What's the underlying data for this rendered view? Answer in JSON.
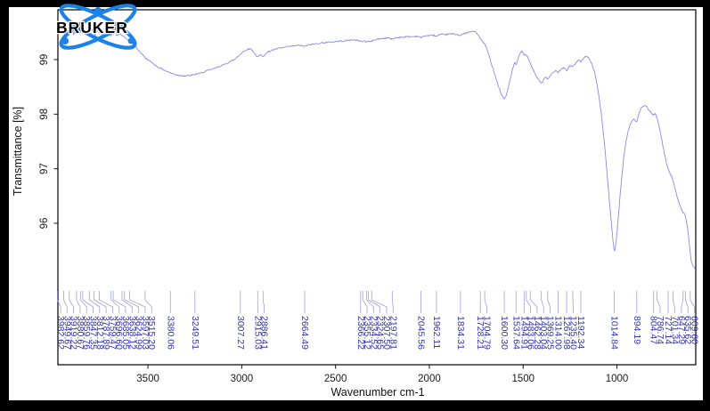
{
  "branding": {
    "logo_text": "BRUKER",
    "logo_color": "#1b82e8",
    "logo_text_color": "#000000"
  },
  "chart_data": {
    "type": "line",
    "title": "",
    "xlabel": "Wavenumber cm-1",
    "ylabel": "Transmittance [%]",
    "x_ticks": [
      3500,
      3000,
      2500,
      2000,
      1500,
      1000
    ],
    "y_ticks": [
      99,
      98,
      97,
      96
    ],
    "x_axis_range_cm1": [
      3980,
      580
    ],
    "ylim_visible": [
      93.4,
      99.9
    ],
    "grid": "off",
    "legend": "none",
    "line_color": "#8a8ae8",
    "peak_label_color": "#3333bb",
    "leader_line_color": "#9f9fe2",
    "frame_color": "#000000",
    "background_color": "#ffffff",
    "border_color": "#000000",
    "peak_labels": [
      "3982.62",
      "3949.67",
      "3919.22",
      "3880.67",
      "3859.76",
      "3847.35",
      "3812.18",
      "3787.89",
      "3759.47",
      "3696.60",
      "3685.05",
      "3638.12",
      "3624.99",
      "3597.03",
      "3515.20",
      "3380.06",
      "3249.51",
      "3007.27",
      "2915.03",
      "2886.41",
      "2664.49",
      "2366.22",
      "2355.12",
      "2334.52",
      "2324.65",
      "2307.50",
      "2197.81",
      "2045.56",
      "1962.11",
      "1834.31",
      "1728.21",
      "1704.79",
      "1600.30",
      "1537.64",
      "1494.91",
      "1483.06",
      "1462.28",
      "1403.04",
      "1369.25",
      "1314.00",
      "1267.98",
      "1235.40",
      "1192.34",
      "1014.84",
      "894.19",
      "804.47",
      "786.74",
      "727.14",
      "701.34",
      "647.29",
      "635.62",
      "609.60"
    ],
    "curve_anchors": [
      [
        3980,
        99.52
      ],
      [
        3955,
        99.62
      ],
      [
        3940,
        99.5
      ],
      [
        3920,
        99.56
      ],
      [
        3900,
        99.48
      ],
      [
        3880,
        99.55
      ],
      [
        3860,
        99.5
      ],
      [
        3840,
        99.56
      ],
      [
        3820,
        99.5
      ],
      [
        3800,
        99.54
      ],
      [
        3780,
        99.48
      ],
      [
        3760,
        99.53
      ],
      [
        3740,
        99.46
      ],
      [
        3720,
        99.5
      ],
      [
        3700,
        99.45
      ],
      [
        3685,
        99.5
      ],
      [
        3665,
        99.44
      ],
      [
        3650,
        99.48
      ],
      [
        3635,
        99.43
      ],
      [
        3620,
        99.4
      ],
      [
        3600,
        99.35
      ],
      [
        3570,
        99.25
      ],
      [
        3540,
        99.13
      ],
      [
        3510,
        99.02
      ],
      [
        3480,
        98.95
      ],
      [
        3450,
        98.87
      ],
      [
        3420,
        98.82
      ],
      [
        3390,
        98.77
      ],
      [
        3360,
        98.73
      ],
      [
        3330,
        98.71
      ],
      [
        3300,
        98.7
      ],
      [
        3270,
        98.71
      ],
      [
        3249,
        98.73
      ],
      [
        3220,
        98.75
      ],
      [
        3190,
        98.79
      ],
      [
        3160,
        98.82
      ],
      [
        3130,
        98.86
      ],
      [
        3100,
        98.9
      ],
      [
        3070,
        98.95
      ],
      [
        3040,
        99.0
      ],
      [
        3020,
        99.06
      ],
      [
        3007,
        99.1
      ],
      [
        2995,
        99.14
      ],
      [
        2980,
        99.17
      ],
      [
        2965,
        99.19
      ],
      [
        2950,
        99.2
      ],
      [
        2935,
        99.13
      ],
      [
        2915,
        99.04
      ],
      [
        2903,
        99.09
      ],
      [
        2886,
        99.06
      ],
      [
        2872,
        99.11
      ],
      [
        2860,
        99.14
      ],
      [
        2840,
        99.17
      ],
      [
        2810,
        99.2
      ],
      [
        2780,
        99.22
      ],
      [
        2750,
        99.24
      ],
      [
        2720,
        99.25
      ],
      [
        2690,
        99.26
      ],
      [
        2664,
        99.24
      ],
      [
        2645,
        99.27
      ],
      [
        2620,
        99.28
      ],
      [
        2590,
        99.3
      ],
      [
        2560,
        99.31
      ],
      [
        2530,
        99.32
      ],
      [
        2500,
        99.33
      ],
      [
        2470,
        99.34
      ],
      [
        2440,
        99.35
      ],
      [
        2410,
        99.36
      ],
      [
        2390,
        99.36
      ],
      [
        2370,
        99.33
      ],
      [
        2362,
        99.35
      ],
      [
        2355,
        99.32
      ],
      [
        2348,
        99.35
      ],
      [
        2334,
        99.32
      ],
      [
        2324,
        99.34
      ],
      [
        2315,
        99.32
      ],
      [
        2307,
        99.34
      ],
      [
        2295,
        99.36
      ],
      [
        2270,
        99.38
      ],
      [
        2240,
        99.39
      ],
      [
        2220,
        99.4
      ],
      [
        2197,
        99.37
      ],
      [
        2180,
        99.4
      ],
      [
        2150,
        99.41
      ],
      [
        2120,
        99.42
      ],
      [
        2090,
        99.42
      ],
      [
        2060,
        99.43
      ],
      [
        2045,
        99.4
      ],
      [
        2030,
        99.43
      ],
      [
        2010,
        99.44
      ],
      [
        1990,
        99.44
      ],
      [
        1975,
        99.45
      ],
      [
        1962,
        99.42
      ],
      [
        1950,
        99.45
      ],
      [
        1930,
        99.46
      ],
      [
        1910,
        99.46
      ],
      [
        1890,
        99.47
      ],
      [
        1870,
        99.47
      ],
      [
        1850,
        99.46
      ],
      [
        1834,
        99.44
      ],
      [
        1820,
        99.47
      ],
      [
        1800,
        99.49
      ],
      [
        1780,
        99.51
      ],
      [
        1765,
        99.52
      ],
      [
        1750,
        99.5
      ],
      [
        1740,
        99.45
      ],
      [
        1728,
        99.38
      ],
      [
        1716,
        99.33
      ],
      [
        1704,
        99.28
      ],
      [
        1692,
        99.18
      ],
      [
        1680,
        99.05
      ],
      [
        1665,
        98.88
      ],
      [
        1650,
        98.72
      ],
      [
        1635,
        98.55
      ],
      [
        1620,
        98.4
      ],
      [
        1610,
        98.32
      ],
      [
        1600,
        98.28
      ],
      [
        1592,
        98.32
      ],
      [
        1582,
        98.45
      ],
      [
        1572,
        98.6
      ],
      [
        1562,
        98.75
      ],
      [
        1552,
        98.88
      ],
      [
        1545,
        98.94
      ],
      [
        1537,
        98.9
      ],
      [
        1530,
        98.98
      ],
      [
        1522,
        99.06
      ],
      [
        1515,
        99.12
      ],
      [
        1508,
        99.15
      ],
      [
        1500,
        99.12
      ],
      [
        1494,
        99.08
      ],
      [
        1488,
        99.1
      ],
      [
        1483,
        99.07
      ],
      [
        1477,
        99.05
      ],
      [
        1470,
        99.0
      ],
      [
        1462,
        98.93
      ],
      [
        1455,
        98.87
      ],
      [
        1448,
        98.82
      ],
      [
        1440,
        98.77
      ],
      [
        1430,
        98.7
      ],
      [
        1420,
        98.64
      ],
      [
        1410,
        98.6
      ],
      [
        1403,
        98.57
      ],
      [
        1396,
        98.6
      ],
      [
        1388,
        98.65
      ],
      [
        1380,
        98.68
      ],
      [
        1375,
        98.66
      ],
      [
        1369,
        98.63
      ],
      [
        1362,
        98.67
      ],
      [
        1352,
        98.72
      ],
      [
        1342,
        98.76
      ],
      [
        1332,
        98.79
      ],
      [
        1322,
        98.8
      ],
      [
        1314,
        98.76
      ],
      [
        1306,
        98.8
      ],
      [
        1296,
        98.83
      ],
      [
        1286,
        98.85
      ],
      [
        1276,
        98.84
      ],
      [
        1267,
        98.79
      ],
      [
        1260,
        98.84
      ],
      [
        1252,
        98.88
      ],
      [
        1244,
        98.9
      ],
      [
        1235,
        98.86
      ],
      [
        1227,
        98.9
      ],
      [
        1217,
        98.95
      ],
      [
        1207,
        98.98
      ],
      [
        1199,
        98.99
      ],
      [
        1192,
        98.96
      ],
      [
        1184,
        99.0
      ],
      [
        1175,
        99.04
      ],
      [
        1166,
        99.06
      ],
      [
        1158,
        99.05
      ],
      [
        1150,
        99.02
      ],
      [
        1140,
        98.96
      ],
      [
        1130,
        98.88
      ],
      [
        1120,
        98.78
      ],
      [
        1110,
        98.62
      ],
      [
        1100,
        98.42
      ],
      [
        1090,
        98.18
      ],
      [
        1080,
        97.9
      ],
      [
        1070,
        97.58
      ],
      [
        1060,
        97.2
      ],
      [
        1050,
        96.8
      ],
      [
        1040,
        96.4
      ],
      [
        1030,
        96.02
      ],
      [
        1022,
        95.72
      ],
      [
        1016,
        95.52
      ],
      [
        1014,
        95.47
      ],
      [
        1010,
        95.52
      ],
      [
        1005,
        95.65
      ],
      [
        1000,
        95.82
      ],
      [
        993,
        96.1
      ],
      [
        986,
        96.4
      ],
      [
        978,
        96.72
      ],
      [
        970,
        97.0
      ],
      [
        962,
        97.25
      ],
      [
        954,
        97.45
      ],
      [
        946,
        97.6
      ],
      [
        938,
        97.72
      ],
      [
        930,
        97.8
      ],
      [
        922,
        97.86
      ],
      [
        914,
        97.9
      ],
      [
        906,
        97.9
      ],
      [
        900,
        97.88
      ],
      [
        894,
        97.86
      ],
      [
        888,
        97.95
      ],
      [
        880,
        98.04
      ],
      [
        872,
        98.1
      ],
      [
        864,
        98.14
      ],
      [
        856,
        98.16
      ],
      [
        848,
        98.15
      ],
      [
        840,
        98.12
      ],
      [
        832,
        98.08
      ],
      [
        824,
        98.05
      ],
      [
        816,
        98.03
      ],
      [
        810,
        98.0
      ],
      [
        804,
        97.97
      ],
      [
        800,
        98.0
      ],
      [
        795,
        98.02
      ],
      [
        790,
        97.97
      ],
      [
        786,
        97.92
      ],
      [
        780,
        97.84
      ],
      [
        772,
        97.72
      ],
      [
        764,
        97.58
      ],
      [
        756,
        97.44
      ],
      [
        748,
        97.3
      ],
      [
        740,
        97.17
      ],
      [
        733,
        97.07
      ],
      [
        727,
        96.98
      ],
      [
        721,
        96.94
      ],
      [
        714,
        96.9
      ],
      [
        708,
        96.86
      ],
      [
        701,
        96.78
      ],
      [
        694,
        96.68
      ],
      [
        687,
        96.58
      ],
      [
        680,
        96.5
      ],
      [
        673,
        96.42
      ],
      [
        666,
        96.35
      ],
      [
        659,
        96.28
      ],
      [
        653,
        96.23
      ],
      [
        647,
        96.18
      ],
      [
        643,
        96.2
      ],
      [
        639,
        96.16
      ],
      [
        635,
        96.12
      ],
      [
        630,
        96.04
      ],
      [
        625,
        95.95
      ],
      [
        620,
        95.82
      ],
      [
        615,
        95.65
      ],
      [
        611,
        95.5
      ],
      [
        607,
        95.38
      ],
      [
        603,
        95.3
      ],
      [
        598,
        95.25
      ],
      [
        592,
        95.2
      ],
      [
        586,
        95.18
      ],
      [
        581,
        95.15
      ]
    ]
  }
}
